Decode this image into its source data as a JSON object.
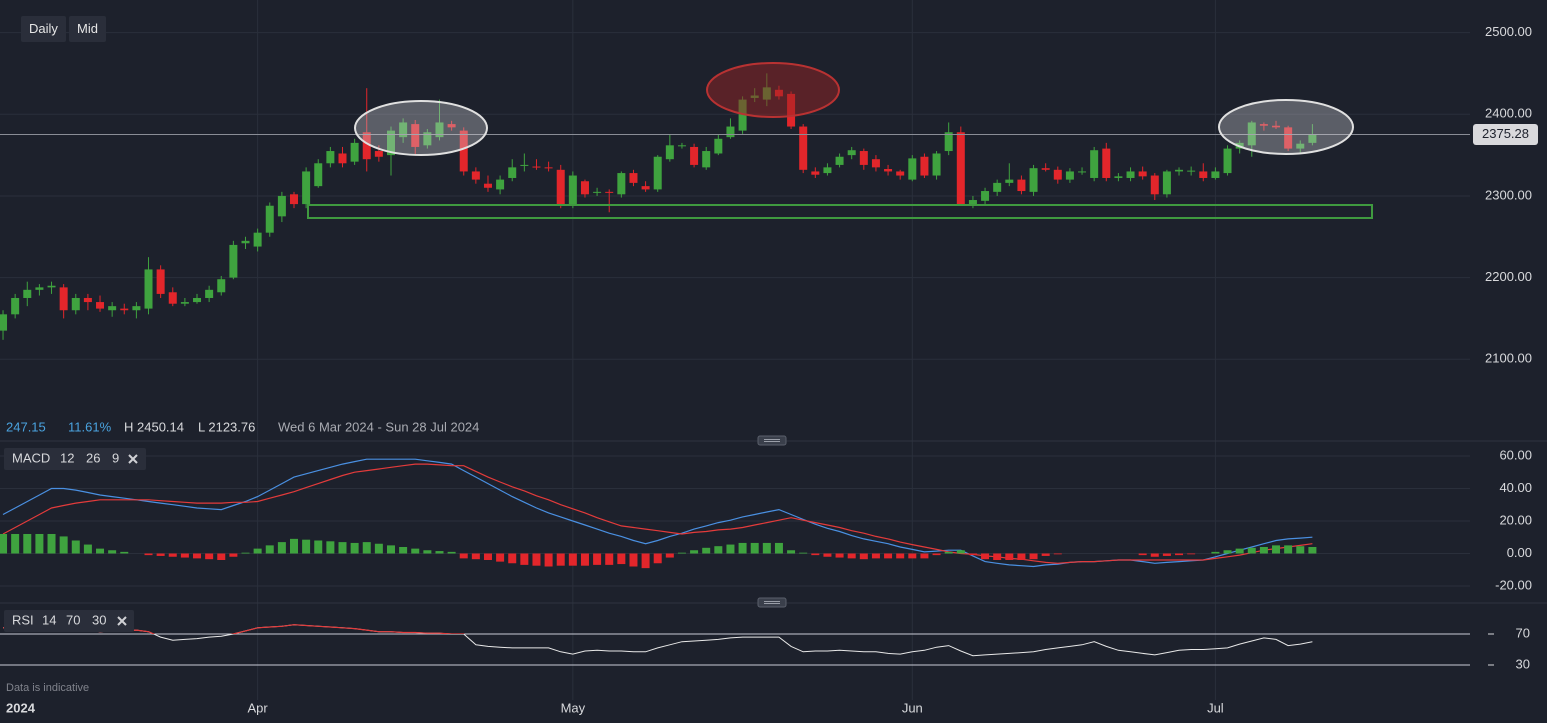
{
  "toolbar": {
    "buttons": [
      "Daily",
      "Mid"
    ]
  },
  "stats": {
    "change": "247.15",
    "change_percent": "11.61%",
    "high": "H 2450.14",
    "low": "L 2123.76",
    "range": "Wed 6 Mar 2024 - Sun 28 Jul 2024"
  },
  "footer": "Data is indicative",
  "chart_data": [
    {
      "type": "candlestick",
      "categories": [
        "2024",
        null,
        null,
        null,
        null,
        null,
        null,
        null,
        null,
        null,
        null,
        null,
        null,
        null,
        null,
        null,
        null,
        null,
        null,
        null,
        null,
        "Apr",
        null,
        null,
        null,
        null,
        null,
        null,
        null,
        null,
        null,
        null,
        null,
        null,
        null,
        null,
        null,
        null,
        null,
        null,
        null,
        null,
        null,
        null,
        null,
        null,
        null,
        "May",
        null,
        null,
        null,
        null,
        null,
        null,
        null,
        null,
        null,
        null,
        null,
        null,
        null,
        null,
        null,
        null,
        null,
        null,
        null,
        null,
        null,
        null,
        null,
        null,
        null,
        null,
        null,
        "Jun",
        null,
        null,
        null,
        null,
        null,
        null,
        null,
        null,
        null,
        null,
        null,
        null,
        null,
        null,
        null,
        null,
        null,
        null,
        null,
        null,
        null,
        null,
        null,
        null,
        "Jul",
        null,
        null,
        null,
        null,
        null,
        null,
        null,
        null
      ],
      "open": [
        2135,
        2155,
        2175,
        2185,
        2188,
        2188,
        2160,
        2175,
        2170,
        2160,
        2162,
        2160,
        2162,
        2210,
        2182,
        2168,
        2170,
        2175,
        2182,
        2200,
        2242,
        2238,
        2255,
        2275,
        2302,
        2290,
        2312,
        2340,
        2352,
        2342,
        2378,
        2355,
        2350,
        2372,
        2388,
        2362,
        2372,
        2388,
        2380,
        2330,
        2315,
        2308,
        2322,
        2338,
        2336,
        2335,
        2332,
        2290,
        2318,
        2304,
        2305,
        2302,
        2328,
        2312,
        2308,
        2345,
        2362,
        2360,
        2335,
        2352,
        2372,
        2380,
        2420,
        2418,
        2430,
        2425,
        2385,
        2330,
        2328,
        2338,
        2350,
        2355,
        2345,
        2333,
        2330,
        2320,
        2348,
        2325,
        2355,
        2378,
        2290,
        2294,
        2305,
        2316,
        2320,
        2305,
        2334,
        2332,
        2320,
        2330,
        2322,
        2358,
        2322,
        2322,
        2330,
        2325,
        2302,
        2330,
        2330,
        2330,
        2322,
        2328,
        2358,
        2362,
        2388,
        2386,
        2384,
        2358,
        2365
      ],
      "high": [
        2160,
        2180,
        2195,
        2192,
        2195,
        2192,
        2180,
        2180,
        2178,
        2170,
        2168,
        2170,
        2225,
        2215,
        2188,
        2175,
        2180,
        2190,
        2202,
        2245,
        2250,
        2260,
        2292,
        2305,
        2305,
        2335,
        2345,
        2360,
        2360,
        2370,
        2432,
        2362,
        2385,
        2395,
        2393,
        2382,
        2418,
        2392,
        2384,
        2335,
        2325,
        2325,
        2345,
        2352,
        2345,
        2342,
        2338,
        2330,
        2320,
        2310,
        2308,
        2330,
        2332,
        2318,
        2350,
        2375,
        2365,
        2364,
        2360,
        2375,
        2395,
        2422,
        2432,
        2450.14,
        2435,
        2428,
        2388,
        2335,
        2340,
        2352,
        2360,
        2358,
        2350,
        2338,
        2332,
        2350,
        2352,
        2355,
        2390,
        2385,
        2300,
        2310,
        2320,
        2340,
        2325,
        2338,
        2340,
        2336,
        2334,
        2335,
        2360,
        2365,
        2328,
        2335,
        2336,
        2328,
        2332,
        2335,
        2336,
        2340,
        2335,
        2362,
        2368,
        2392,
        2390,
        2392,
        2386,
        2368,
        2388
      ],
      "low": [
        2123.76,
        2150,
        2165,
        2178,
        2180,
        2150,
        2155,
        2160,
        2158,
        2152,
        2155,
        2150,
        2155,
        2175,
        2165,
        2165,
        2168,
        2170,
        2178,
        2198,
        2235,
        2232,
        2250,
        2268,
        2285,
        2285,
        2310,
        2335,
        2335,
        2338,
        2330,
        2342,
        2325,
        2365,
        2350,
        2358,
        2368,
        2380,
        2325,
        2315,
        2305,
        2302,
        2318,
        2330,
        2332,
        2330,
        2285,
        2285,
        2298,
        2300,
        2280,
        2298,
        2312,
        2305,
        2305,
        2342,
        2358,
        2335,
        2332,
        2350,
        2370,
        2376,
        2415,
        2410,
        2418,
        2382,
        2328,
        2322,
        2325,
        2335,
        2345,
        2332,
        2330,
        2325,
        2320,
        2318,
        2322,
        2320,
        2350,
        2288,
        2285,
        2290,
        2300,
        2312,
        2302,
        2300,
        2330,
        2315,
        2316,
        2326,
        2318,
        2318,
        2318,
        2318,
        2320,
        2295,
        2298,
        2325,
        2325,
        2318,
        2320,
        2325,
        2352,
        2348,
        2380,
        2382,
        2355,
        2352,
        2362
      ],
      "close": [
        2155,
        2175,
        2185,
        2188,
        2190,
        2160,
        2175,
        2170,
        2162,
        2165,
        2160,
        2165,
        2210,
        2180,
        2168,
        2170,
        2175,
        2185,
        2198,
        2240,
        2245,
        2255,
        2288,
        2300,
        2290,
        2330,
        2340,
        2355,
        2340,
        2365,
        2345,
        2348,
        2380,
        2390,
        2360,
        2378,
        2390,
        2384,
        2330,
        2320,
        2310,
        2320,
        2335,
        2338,
        2335,
        2334,
        2290,
        2325,
        2302,
        2305,
        2304,
        2328,
        2316,
        2308,
        2348,
        2362,
        2362,
        2338,
        2355,
        2370,
        2385,
        2418,
        2423,
        2433,
        2422,
        2385,
        2332,
        2326,
        2335,
        2348,
        2356,
        2338,
        2335,
        2330,
        2325,
        2346,
        2325,
        2352,
        2378,
        2290,
        2295,
        2306,
        2316,
        2320,
        2306,
        2334,
        2332,
        2320,
        2330,
        2330,
        2356,
        2322,
        2324,
        2330,
        2324,
        2302,
        2330,
        2332,
        2331,
        2322,
        2330,
        2358,
        2365,
        2390,
        2386,
        2384,
        2358,
        2364,
        2375.28
      ],
      "up_color": "#3fa33f",
      "down_color": "#e3262b",
      "last_price_color": "#8a8d96",
      "xlim": [
        -0.25,
        121
      ],
      "ylim": [
        2028,
        2540
      ],
      "yticks": [
        {
          "value": 2500,
          "label": "2500.00"
        },
        {
          "value": 2400,
          "label": "2400.00"
        },
        {
          "value": 2300,
          "label": "2300.00"
        },
        {
          "value": 2200,
          "label": "2200.00"
        },
        {
          "value": 2100,
          "label": "2100.00"
        }
      ],
      "grid": true
    },
    {
      "type": "macd",
      "title": "MACD",
      "params": [
        12,
        26,
        9
      ],
      "series": [
        {
          "color": "#4a90e2",
          "values": [
            24,
            28,
            32,
            36,
            40,
            40,
            39,
            37.5,
            36,
            35,
            34,
            33,
            32,
            31,
            30,
            29,
            28,
            27.5,
            27,
            29.5,
            32,
            35,
            39,
            43,
            47,
            49,
            51,
            53,
            55,
            56.5,
            58,
            58,
            58,
            58,
            58,
            57,
            56,
            55,
            51,
            47,
            43,
            39,
            35,
            31.5,
            28,
            25,
            22.5,
            20,
            17.5,
            15,
            12.5,
            10.5,
            8,
            6,
            8,
            10.5,
            12.5,
            15,
            17,
            19,
            20.5,
            22.5,
            24,
            25.5,
            27,
            24,
            21,
            18,
            15.5,
            13.5,
            11,
            9,
            7.5,
            6,
            4,
            2.5,
            1,
            1.5,
            2,
            2,
            -1.5,
            -5,
            -6,
            -7,
            -7.5,
            -8,
            -7,
            -6.5,
            -5.5,
            -5,
            -5,
            -4.5,
            -4,
            -4,
            -5,
            -6,
            -5.5,
            -5,
            -4.5,
            -4,
            -2,
            0,
            2,
            4,
            6,
            8,
            9,
            9.5,
            10
          ]
        },
        {
          "color": "#e33b3b",
          "values": [
            12,
            16,
            20,
            24,
            28,
            29.5,
            31,
            32,
            33,
            33,
            33,
            33,
            33,
            32.5,
            32,
            31.5,
            31,
            31,
            31,
            31.5,
            31.5,
            32,
            34,
            36,
            38,
            40.5,
            43,
            45.5,
            48,
            50,
            51,
            52,
            53,
            54,
            55,
            55,
            54.5,
            54,
            54,
            50.5,
            47,
            44,
            41,
            38.5,
            35.5,
            33,
            30,
            27.5,
            25,
            22,
            19.5,
            17,
            16,
            15,
            14,
            13,
            12,
            13,
            13.5,
            14.5,
            15,
            16,
            17.5,
            19,
            20.5,
            22,
            20.5,
            19,
            17.5,
            16,
            14,
            12.5,
            10.5,
            9,
            7,
            5.5,
            4,
            2.5,
            1,
            0,
            -0.5,
            -1.5,
            -2,
            -3,
            -3.5,
            -4.5,
            -5.5,
            -6,
            -5.5,
            -5,
            -5,
            -4.5,
            -4,
            -4,
            -4,
            -4,
            -4,
            -4,
            -4,
            -4,
            -3,
            -2,
            -1,
            0.5,
            2,
            3,
            4,
            5,
            6
          ]
        },
        {
          "style": "histogram",
          "up_color": "#3fa33f",
          "down_color": "#e3262b",
          "values": [
            12,
            12,
            12,
            12,
            12,
            10.5,
            8,
            5.5,
            3,
            2,
            1,
            0,
            -1,
            -1.5,
            -2,
            -2.5,
            -3,
            -3.5,
            -4,
            -2,
            0.5,
            3,
            5,
            7,
            9,
            8.5,
            8,
            7.5,
            7,
            6.5,
            7,
            6,
            5,
            4,
            3,
            2,
            1.5,
            1,
            -3,
            -3.5,
            -4,
            -5,
            -6,
            -7,
            -7.5,
            -8,
            -7.5,
            -7.5,
            -7.5,
            -7,
            -7,
            -6.5,
            -8,
            -9,
            -6,
            -2.5,
            0.5,
            2,
            3.5,
            4.5,
            5.5,
            6.5,
            6.5,
            6.5,
            6.5,
            2,
            0.5,
            -1,
            -2,
            -2.5,
            -3,
            -3.5,
            -3,
            -3,
            -3,
            -3,
            -3,
            -1,
            1,
            2,
            -1,
            -3.5,
            -4,
            -4,
            -4,
            -3.5,
            -1.5,
            -0.5,
            0,
            0,
            0,
            0,
            0,
            0,
            -1,
            -2,
            -1.5,
            -1,
            -0.5,
            0,
            1,
            2,
            3,
            3.5,
            4,
            5,
            5,
            4.5,
            4
          ]
        }
      ],
      "ylim": [
        -28.6,
        65.5
      ],
      "yticks": [
        {
          "value": 60,
          "label": "60.00"
        },
        {
          "value": 40,
          "label": "40.00"
        },
        {
          "value": 20,
          "label": "20.00"
        },
        {
          "value": 0,
          "label": "0.00"
        },
        {
          "value": -20,
          "label": "-20.00"
        }
      ],
      "grid": true
    },
    {
      "type": "rsi",
      "title": "RSI",
      "params": [
        14,
        70,
        30
      ],
      "series": [
        {
          "color": "#e8e8e8",
          "overbought_color": "#e33b3b",
          "values": [
            78,
            78,
            79,
            80,
            80,
            79,
            77,
            75,
            73,
            74,
            74,
            75,
            73,
            66,
            62,
            63,
            64,
            66,
            67,
            70,
            74,
            78,
            79,
            80,
            82,
            81,
            80,
            79,
            78,
            77,
            75,
            73,
            73,
            72,
            72,
            71,
            71,
            70,
            70,
            56,
            54,
            53,
            52,
            52,
            52,
            52,
            47,
            44,
            48,
            49,
            48,
            48,
            47,
            47,
            52,
            56,
            60,
            61,
            62,
            63,
            65,
            66,
            66,
            66,
            66,
            54,
            47,
            48,
            48,
            49,
            48,
            47,
            47,
            45,
            44,
            47,
            49,
            53,
            55,
            48,
            42,
            43,
            44,
            45,
            46,
            47,
            50,
            52,
            54,
            56,
            60,
            54,
            49,
            47,
            45,
            43,
            46,
            49,
            50,
            50,
            51,
            52,
            57,
            61,
            65,
            63,
            55,
            57,
            60
          ]
        }
      ],
      "ylim": [
        -15.2,
        98.4
      ],
      "yticks": [
        70,
        30
      ],
      "grid": true
    }
  ]
}
